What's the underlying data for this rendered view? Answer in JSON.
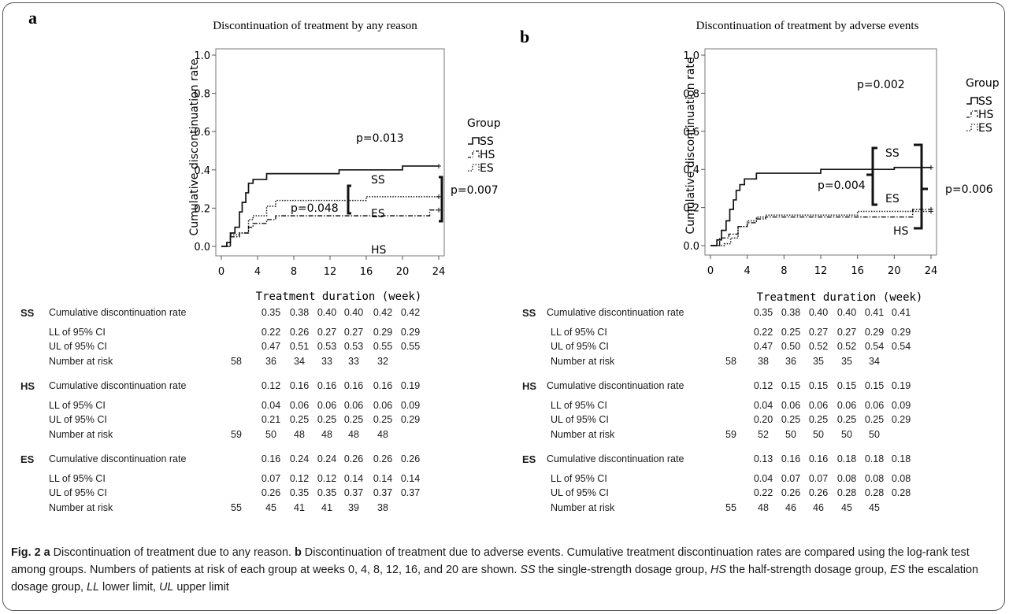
{
  "panels": [
    {
      "letter": "a",
      "title": "Discontinuation of treatment by any reason",
      "ylabel": "Cumulative discontinuation rate",
      "xlabel": "Treatment duration (week)",
      "legend_title": "Group",
      "legend": [
        "SS",
        "HS",
        "ES"
      ],
      "p_overall": "p=0.013",
      "p_ss_es": "p=0.048",
      "p_ss_hs": "p=0.007",
      "curve_labels": [
        "SS",
        "ES",
        "HS"
      ],
      "table": {
        "groups": [
          {
            "name": "SS",
            "rows": [
              {
                "label": "Cumulative discontinuation rate",
                "values": [
                  "",
                  "0.35",
                  "0.38",
                  "0.40",
                  "0.40",
                  "0.42",
                  "0.42"
                ]
              },
              {
                "label": "LL of 95% CI",
                "values": [
                  "",
                  "0.22",
                  "0.26",
                  "0.27",
                  "0.27",
                  "0.29",
                  "0.29"
                ]
              },
              {
                "label": "UL of 95% CI",
                "values": [
                  "",
                  "0.47",
                  "0.51",
                  "0.53",
                  "0.53",
                  "0.55",
                  "0.55"
                ]
              },
              {
                "label": "Number at risk",
                "values": [
                  "58",
                  "36",
                  "34",
                  "33",
                  "33",
                  "32",
                  ""
                ]
              }
            ]
          },
          {
            "name": "HS",
            "rows": [
              {
                "label": "Cumulative discontinuation rate",
                "values": [
                  "",
                  "0.12",
                  "0.16",
                  "0.16",
                  "0.16",
                  "0.16",
                  "0.19"
                ]
              },
              {
                "label": "LL of 95% CI",
                "values": [
                  "",
                  "0.04",
                  "0.06",
                  "0.06",
                  "0.06",
                  "0.06",
                  "0.09"
                ]
              },
              {
                "label": "UL of 95% CI",
                "values": [
                  "",
                  "0.21",
                  "0.25",
                  "0.25",
                  "0.25",
                  "0.25",
                  "0.29"
                ]
              },
              {
                "label": "Number at risk",
                "values": [
                  "59",
                  "50",
                  "48",
                  "48",
                  "48",
                  "48",
                  ""
                ]
              }
            ]
          },
          {
            "name": "ES",
            "rows": [
              {
                "label": "Cumulative discontinuation rate",
                "values": [
                  "",
                  "0.16",
                  "0.24",
                  "0.24",
                  "0.26",
                  "0.26",
                  "0.26"
                ]
              },
              {
                "label": "LL of 95% CI",
                "values": [
                  "",
                  "0.07",
                  "0.12",
                  "0.12",
                  "0.14",
                  "0.14",
                  "0.14"
                ]
              },
              {
                "label": "UL of 95% CI",
                "values": [
                  "",
                  "0.26",
                  "0.35",
                  "0.35",
                  "0.37",
                  "0.37",
                  "0.37"
                ]
              },
              {
                "label": "Number at risk",
                "values": [
                  "55",
                  "45",
                  "41",
                  "41",
                  "39",
                  "38",
                  ""
                ]
              }
            ]
          }
        ]
      }
    },
    {
      "letter": "b",
      "title": "Discontinuation of treatment by adverse events",
      "ylabel": "Cumulative discontinuation rate",
      "xlabel": "Treatment duration (week)",
      "legend_title": "Group",
      "legend": [
        "SS",
        "HS",
        "ES"
      ],
      "p_overall": "p=0.002",
      "p_ss_es": "p=0.004",
      "p_ss_hs": "p=0.006",
      "curve_labels": [
        "SS",
        "ES",
        "HS"
      ],
      "table": {
        "groups": [
          {
            "name": "SS",
            "rows": [
              {
                "label": "Cumulative discontinuation rate",
                "values": [
                  "",
                  "0.35",
                  "0.38",
                  "0.40",
                  "0.40",
                  "0.41",
                  "0.41"
                ]
              },
              {
                "label": "LL of 95% CI",
                "values": [
                  "",
                  "0.22",
                  "0.25",
                  "0.27",
                  "0.27",
                  "0.29",
                  "0.29"
                ]
              },
              {
                "label": "UL of 95% CI",
                "values": [
                  "",
                  "0.47",
                  "0.50",
                  "0.52",
                  "0.52",
                  "0.54",
                  "0.54"
                ]
              },
              {
                "label": "Number at risk",
                "values": [
                  "58",
                  "38",
                  "36",
                  "35",
                  "35",
                  "34",
                  ""
                ]
              }
            ]
          },
          {
            "name": "HS",
            "rows": [
              {
                "label": "Cumulative discontinuation rate",
                "values": [
                  "",
                  "0.12",
                  "0.15",
                  "0.15",
                  "0.15",
                  "0.15",
                  "0.19"
                ]
              },
              {
                "label": "LL of 95% CI",
                "values": [
                  "",
                  "0.04",
                  "0.06",
                  "0.06",
                  "0.06",
                  "0.06",
                  "0.09"
                ]
              },
              {
                "label": "UL of 95% CI",
                "values": [
                  "",
                  "0.20",
                  "0.25",
                  "0.25",
                  "0.25",
                  "0.25",
                  "0.29"
                ]
              },
              {
                "label": "Number at risk",
                "values": [
                  "59",
                  "52",
                  "50",
                  "50",
                  "50",
                  "50",
                  ""
                ]
              }
            ]
          },
          {
            "name": "ES",
            "rows": [
              {
                "label": "Cumulative discontinuation rate",
                "values": [
                  "",
                  "0.13",
                  "0.16",
                  "0.16",
                  "0.18",
                  "0.18",
                  "0.18"
                ]
              },
              {
                "label": "LL of 95% CI",
                "values": [
                  "",
                  "0.04",
                  "0.07",
                  "0.07",
                  "0.08",
                  "0.08",
                  "0.08"
                ]
              },
              {
                "label": "UL of 95% CI",
                "values": [
                  "",
                  "0.22",
                  "0.26",
                  "0.26",
                  "0.28",
                  "0.28",
                  "0.28"
                ]
              },
              {
                "label": "Number at risk",
                "values": [
                  "55",
                  "48",
                  "46",
                  "46",
                  "45",
                  "45",
                  ""
                ]
              }
            ]
          }
        ]
      }
    }
  ],
  "caption": {
    "fig_label": "Fig. 2",
    "a_label": "a",
    "a_text": " Discontinuation of treatment due to any reason. ",
    "b_label": "b",
    "b_text": " Discontinuation of treatment due to adverse events. Cumulative treatment discontinuation rates are compared using the log-rank test among groups. Numbers of patients at risk of each group at weeks 0, 4, 8, 12, 16, and 20 are shown. ",
    "ss_abbr": "SS",
    "ss_text": " the single-strength dosage group, ",
    "hs_abbr": "HS",
    "hs_text": " the half-strength dosage group, ",
    "es_abbr": "ES",
    "es_text": " the escalation dosage group, ",
    "ll_abbr": "LL",
    "ll_text": " lower limit, ",
    "ul_abbr": "UL",
    "ul_text": " upper limit"
  },
  "chart_data": [
    {
      "type": "line",
      "step": true,
      "title": "Discontinuation of treatment by any reason",
      "xlabel": "Treatment duration (week)",
      "ylabel": "Cumulative discontinuation rate",
      "xlim": [
        0,
        24
      ],
      "ylim": [
        0.0,
        1.0
      ],
      "xticks": [
        0,
        4,
        8,
        12,
        16,
        20,
        24
      ],
      "yticks": [
        0.0,
        0.2,
        0.4,
        0.6,
        0.8,
        1.0
      ],
      "grid": false,
      "legend": "right",
      "series": [
        {
          "name": "SS",
          "style": "solid",
          "x": [
            0,
            0.6,
            1.0,
            1.5,
            2.0,
            2.3,
            2.7,
            3.0,
            3.5,
            4.0,
            5.0,
            6.0,
            13.0,
            20.0,
            24.0
          ],
          "y": [
            0.0,
            0.02,
            0.07,
            0.1,
            0.18,
            0.23,
            0.28,
            0.33,
            0.35,
            0.35,
            0.38,
            0.38,
            0.4,
            0.42,
            0.42
          ]
        },
        {
          "name": "HS",
          "style": "dashdot",
          "x": [
            0,
            1.0,
            2.0,
            3.0,
            3.5,
            4.0,
            5.0,
            6.0,
            8.0,
            16.0,
            23.0,
            24.0
          ],
          "y": [
            0.0,
            0.05,
            0.07,
            0.1,
            0.12,
            0.12,
            0.14,
            0.16,
            0.16,
            0.16,
            0.19,
            0.19
          ]
        },
        {
          "name": "ES",
          "style": "dotted",
          "x": [
            0,
            1.0,
            2.0,
            3.0,
            3.5,
            4.0,
            5.0,
            6.0,
            13.0,
            16.0,
            24.0
          ],
          "y": [
            0.0,
            0.06,
            0.07,
            0.14,
            0.16,
            0.16,
            0.21,
            0.24,
            0.24,
            0.26,
            0.26
          ]
        }
      ],
      "annotations": [
        "p=0.013",
        "p=0.048",
        "p=0.007",
        "SS",
        "ES",
        "HS"
      ]
    },
    {
      "type": "line",
      "step": true,
      "title": "Discontinuation of treatment by adverse events",
      "xlabel": "Treatment duration (week)",
      "ylabel": "Cumulative discontinuation rate",
      "xlim": [
        0,
        24
      ],
      "ylim": [
        0.0,
        1.0
      ],
      "xticks": [
        0,
        4,
        8,
        12,
        16,
        20,
        24
      ],
      "yticks": [
        0.0,
        0.2,
        0.4,
        0.6,
        0.8,
        1.0
      ],
      "grid": false,
      "legend": "right",
      "series": [
        {
          "name": "SS",
          "style": "solid",
          "x": [
            0,
            0.7,
            1.2,
            1.7,
            2.1,
            2.5,
            2.8,
            3.2,
            3.7,
            4.0,
            5.0,
            6.0,
            12.0,
            20.0,
            24.0
          ],
          "y": [
            0.0,
            0.03,
            0.08,
            0.13,
            0.19,
            0.24,
            0.29,
            0.32,
            0.35,
            0.35,
            0.38,
            0.38,
            0.4,
            0.41,
            0.41
          ]
        },
        {
          "name": "HS",
          "style": "dashdot",
          "x": [
            0,
            1.0,
            2.0,
            3.0,
            4.0,
            5.0,
            6.0,
            12.0,
            22.0,
            24.0
          ],
          "y": [
            0.0,
            0.04,
            0.06,
            0.1,
            0.12,
            0.14,
            0.15,
            0.15,
            0.19,
            0.19
          ]
        },
        {
          "name": "ES",
          "style": "dotted",
          "x": [
            0,
            1.5,
            2.2,
            3.0,
            4.0,
            5.0,
            6.0,
            13.0,
            16.0,
            24.0
          ],
          "y": [
            0.0,
            0.01,
            0.04,
            0.1,
            0.13,
            0.15,
            0.16,
            0.16,
            0.18,
            0.18
          ]
        }
      ],
      "annotations": [
        "p=0.002",
        "p=0.004",
        "p=0.006",
        "SS",
        "ES",
        "HS"
      ]
    }
  ]
}
